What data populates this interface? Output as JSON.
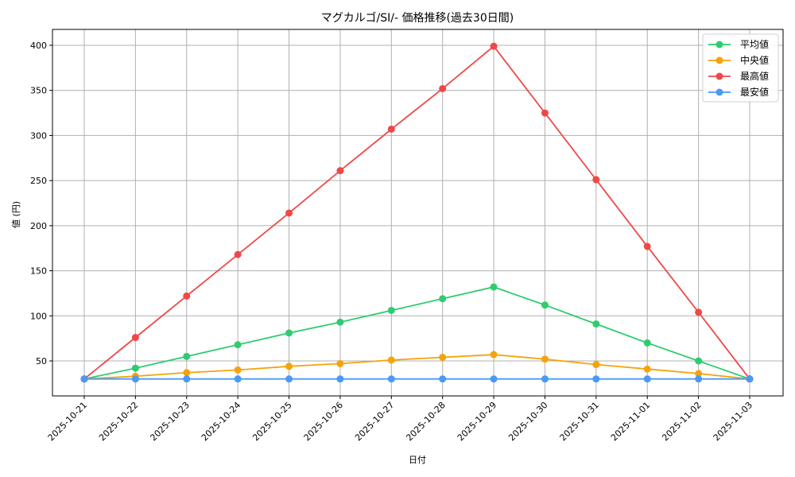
{
  "chart_data": {
    "type": "line",
    "title": "マグカルゴ/SI/- 価格推移(過去30日間)",
    "xlabel": "日付",
    "ylabel": "値 (円)",
    "ylim": [
      11,
      418
    ],
    "yticks": [
      50,
      100,
      150,
      200,
      250,
      300,
      350,
      400
    ],
    "grid": true,
    "legend_position": "upper right",
    "categories": [
      "2025-10-21",
      "2025-10-22",
      "2025-10-23",
      "2025-10-24",
      "2025-10-25",
      "2025-10-26",
      "2025-10-27",
      "2025-10-28",
      "2025-10-29",
      "2025-10-30",
      "2025-10-31",
      "2025-11-01",
      "2025-11-02",
      "2025-11-03"
    ],
    "series": [
      {
        "name": "平均値",
        "color": "#2ecc71",
        "values": [
          30,
          42,
          55,
          68,
          81,
          93,
          106,
          119,
          132,
          112,
          91,
          70,
          50,
          30
        ]
      },
      {
        "name": "中央値",
        "color": "#f5a30a",
        "values": [
          30,
          33,
          37,
          40,
          44,
          47,
          51,
          54,
          57,
          52,
          46,
          41,
          36,
          30
        ]
      },
      {
        "name": "最高値",
        "color": "#f04848",
        "values": [
          30,
          76,
          122,
          168,
          214,
          261,
          307,
          352,
          399,
          325,
          251,
          177,
          104,
          30
        ]
      },
      {
        "name": "最安値",
        "color": "#4a9af5",
        "values": [
          30,
          30,
          30,
          30,
          30,
          30,
          30,
          30,
          30,
          30,
          30,
          30,
          30,
          30
        ]
      }
    ]
  }
}
